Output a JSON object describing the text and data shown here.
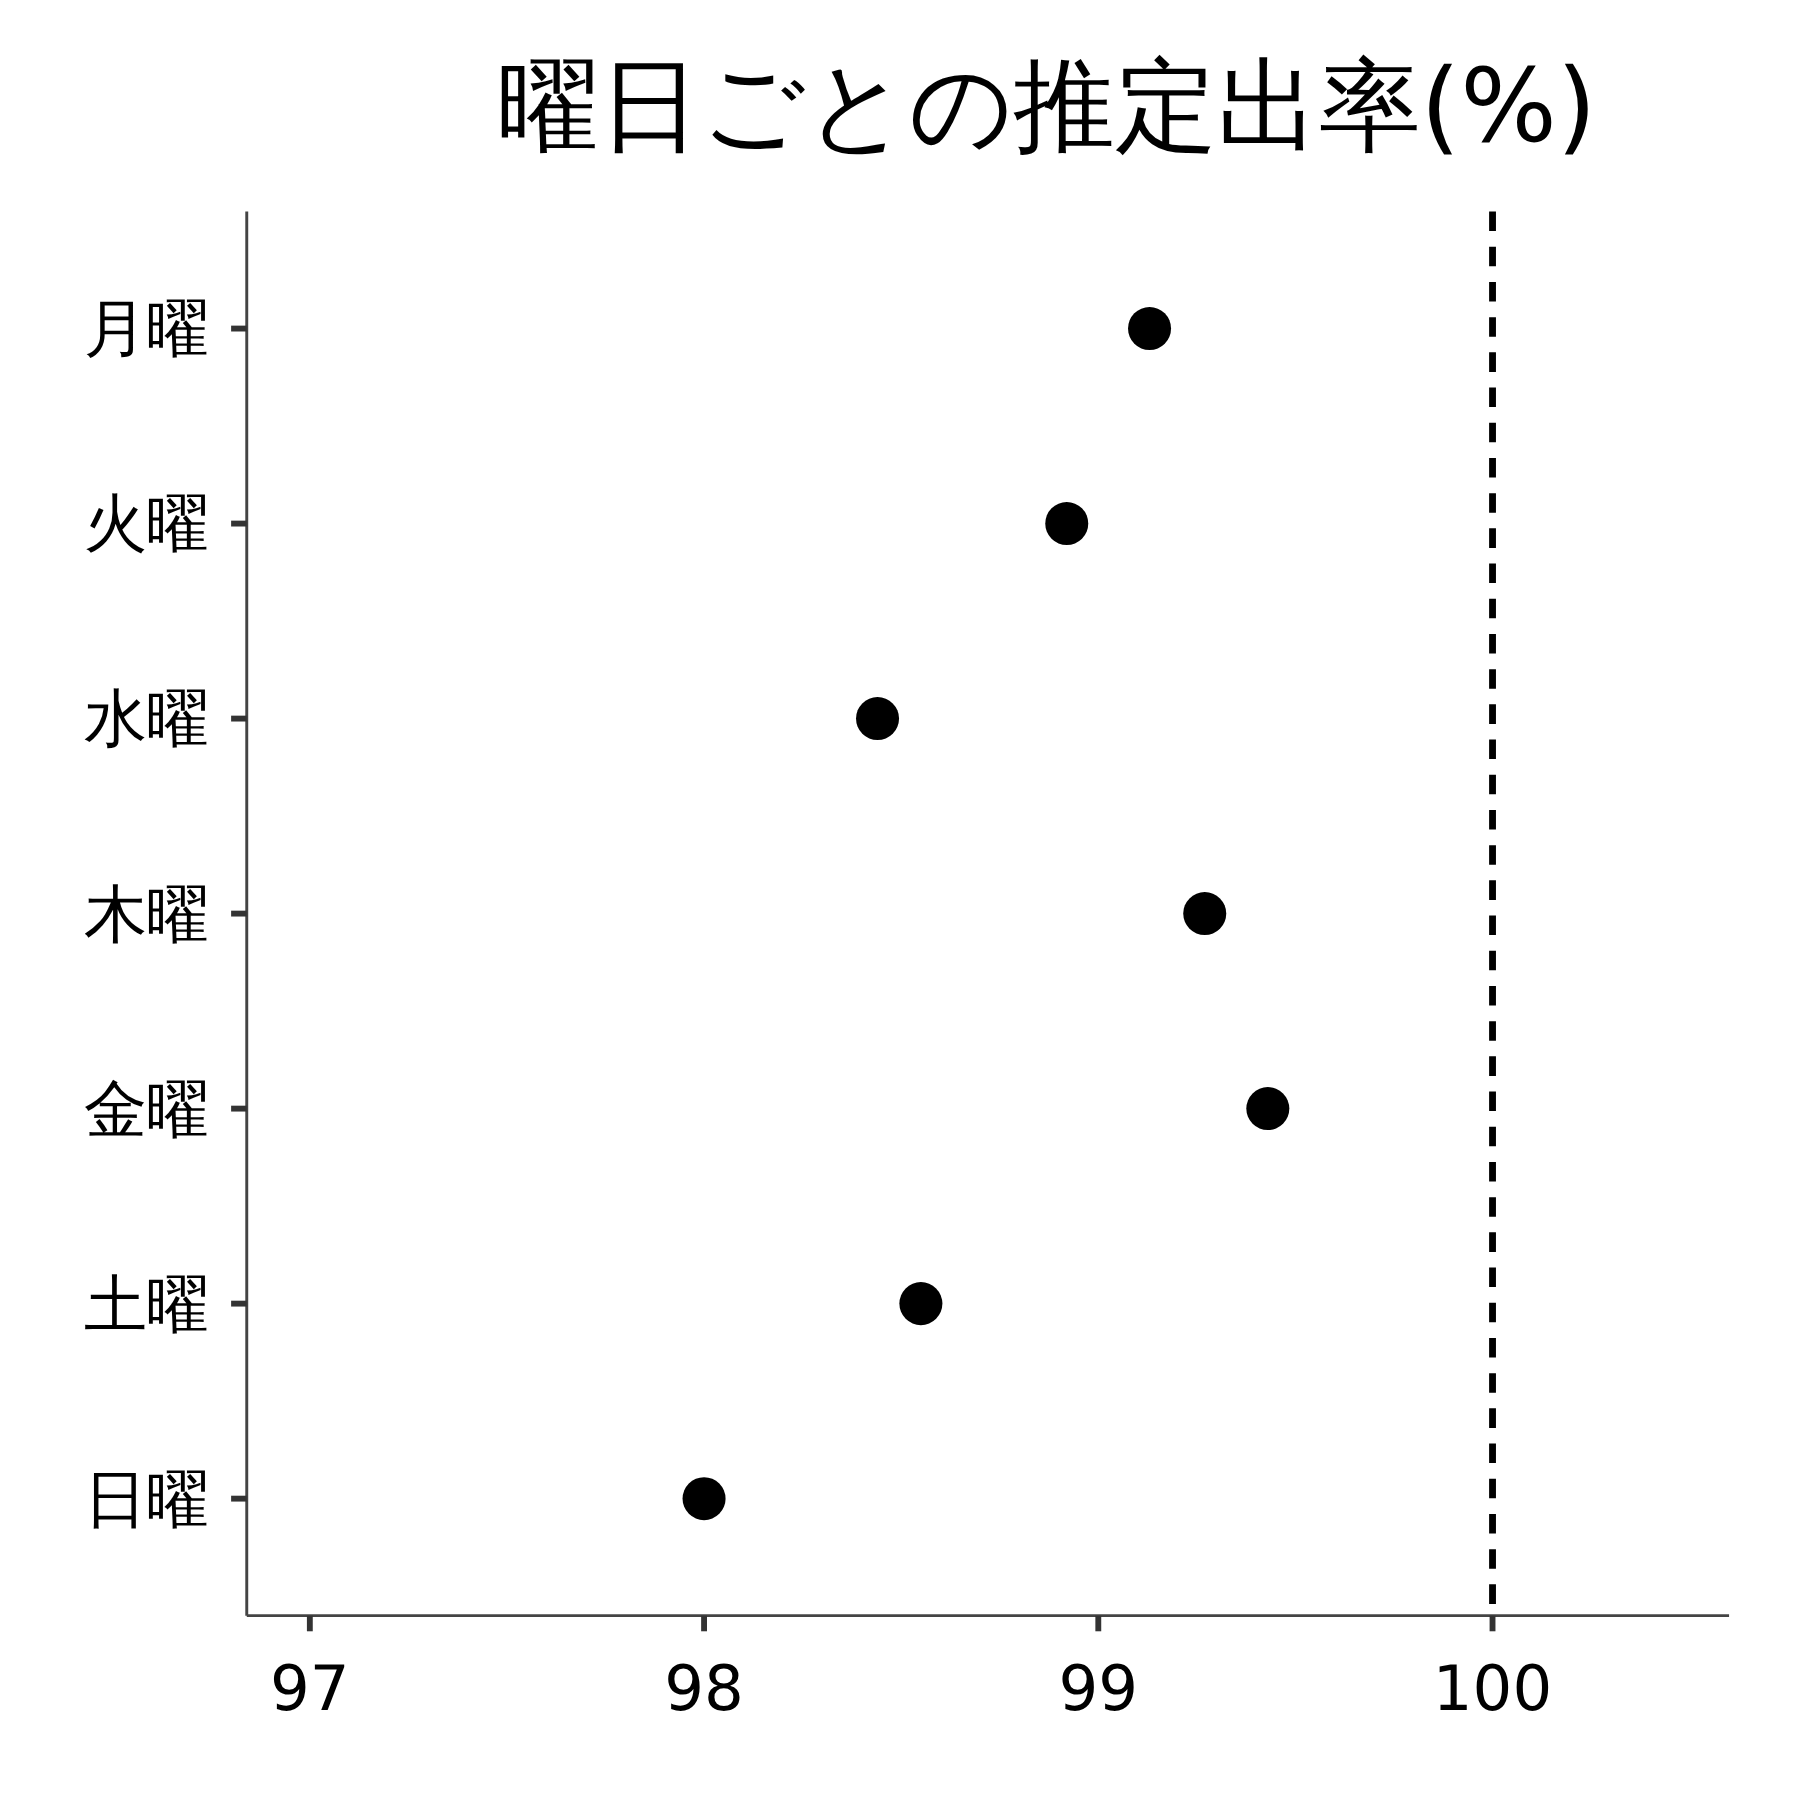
{
  "chart_data": {
    "type": "scatter",
    "title": "曜日ごとの推定出率(%)",
    "orientation": "horizontal",
    "categories": [
      "月曜",
      "火曜",
      "水曜",
      "木曜",
      "金曜",
      "土曜",
      "日曜"
    ],
    "values": [
      99.13,
      98.92,
      98.44,
      99.27,
      99.43,
      98.55,
      98.0
    ],
    "color": "#000000",
    "marker": "circle",
    "xlim": [
      96.84,
      100.6
    ],
    "xticks": [
      97,
      98,
      99,
      100
    ],
    "ref_lines": [
      {
        "axis": "x",
        "value": 100,
        "line_style": "dashed",
        "color": "#000000"
      }
    ]
  }
}
